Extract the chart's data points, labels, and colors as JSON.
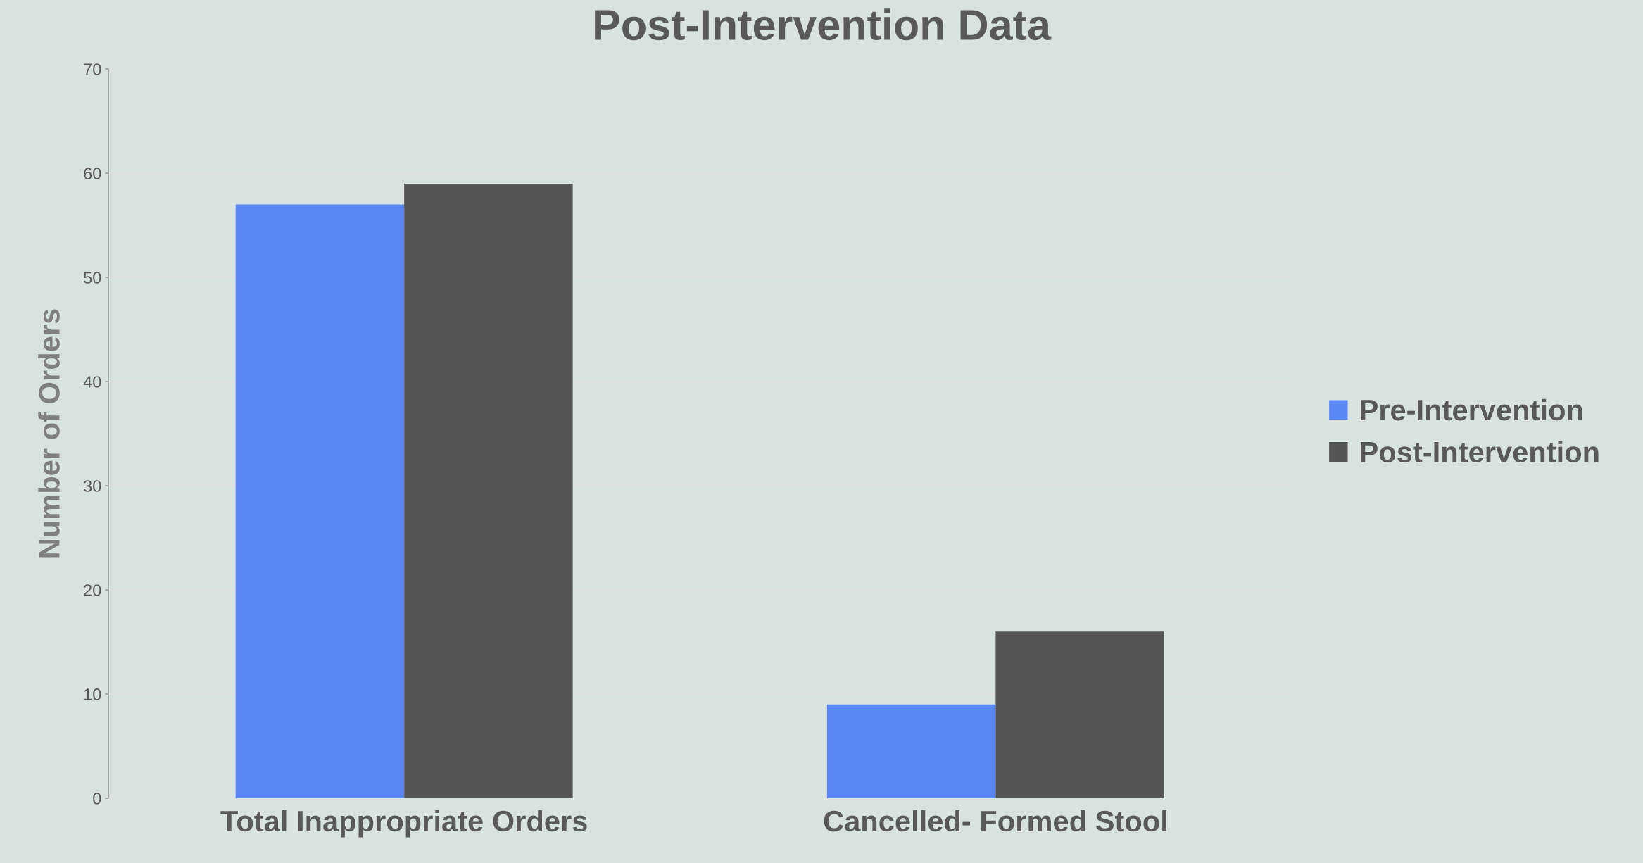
{
  "chart_data": {
    "type": "bar",
    "title": "Post-Intervention Data",
    "ylabel": "Number of Orders",
    "categories": [
      "Total Inappropriate Orders",
      "Cancelled- Formed Stool"
    ],
    "series": [
      {
        "name": "Pre-Intervention",
        "color": "#5b87f2",
        "values": [
          57,
          9
        ]
      },
      {
        "name": "Post-Intervention",
        "color": "#555555",
        "values": [
          59,
          16
        ]
      }
    ],
    "ylim": [
      0,
      70
    ],
    "yticks": [
      0,
      10,
      20,
      30,
      40,
      50,
      60,
      70
    ],
    "grid": "y",
    "legend": "right"
  }
}
